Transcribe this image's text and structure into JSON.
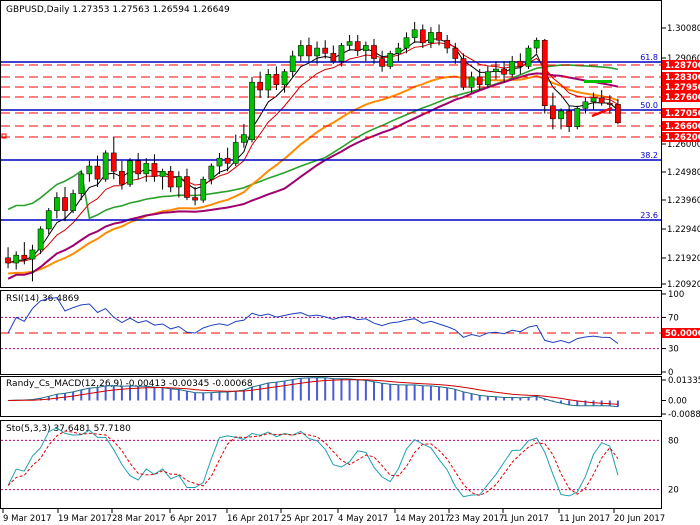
{
  "colors": {
    "background": "#ffffff",
    "frame": "#000000",
    "bull": "#00c000",
    "bear": "#ff0000",
    "hline_blue": "#0000c0",
    "hline_red": "#ff0000",
    "ma_green": "#2ca02c",
    "ma_orange": "#ff8c00",
    "ma_purple": "#a0006f",
    "ma_fast_black": "#000000",
    "ma_red": "#d00000",
    "rsi": "#1f3fbf",
    "macd_hist": "#4a5bd8",
    "macd_line": "#1f6f8b",
    "signal_line": "#d00000",
    "stoch_main": "#1f9fb0",
    "stoch_signal": "#e00000",
    "level_dotted": "#c0007a",
    "label_red_bg": "#ff0000",
    "label_red_text": "#ffffff"
  },
  "main": {
    "title": "GBPUSD,Daily  1.27353 1.27563 1.26594 1.26649",
    "y_ticks": [
      "1.30080",
      "1.29060",
      "1.28050",
      "1.27030",
      "1.26000",
      "1.24980",
      "1.23960",
      "1.22940",
      "1.21920",
      "1.20920"
    ],
    "fib_levels": [
      {
        "label": "61.8",
        "value": 1.2905
      },
      {
        "label": "50.0",
        "value": 1.2728
      },
      {
        "label": "38.2",
        "value": 1.2542
      },
      {
        "label": "23.6",
        "value": 1.2312
      }
    ],
    "red_price_labels": [
      "1.28700",
      "1.28300",
      "1.27950",
      "1.27600",
      "1.27050",
      "1.26600",
      "1.26200"
    ]
  },
  "rsi": {
    "title": "RSI(14) 36.4869",
    "y_ticks": [
      "100",
      "70",
      "50",
      "30",
      "0"
    ],
    "level_label": "50.0000"
  },
  "macd": {
    "title": "Randy_Cs_MACD(12,26,9) -0.00413 -0.00345 -0.00068",
    "y_ticks": [
      "0.01335",
      "0.00",
      "-0.0088"
    ]
  },
  "stoch": {
    "title": "Sto(5,3,3) 37.6481 57.7180",
    "y_ticks": [
      "80",
      "20"
    ]
  },
  "x_labels": [
    "9 Mar 2017",
    "19 Mar 2017",
    "28 Mar 2017",
    "6 Apr 2017",
    "16 Apr 2017",
    "25 Apr 2017",
    "4 May 2017",
    "14 May 2017",
    "23 May 2017",
    "1 Jun 2017",
    "11 Jun 2017",
    "20 Jun 2017"
  ],
  "chart_data": {
    "type": "candlestick",
    "symbol": "GBPUSD",
    "timeframe": "Daily",
    "last_bar": {
      "open": 1.27353,
      "high": 1.27563,
      "low": 1.26594,
      "close": 1.26649
    },
    "ylim": [
      1.205,
      1.308
    ],
    "candles": [
      {
        "o": 1.215,
        "h": 1.219,
        "l": 1.211,
        "c": 1.213
      },
      {
        "o": 1.213,
        "h": 1.2175,
        "l": 1.2105,
        "c": 1.216
      },
      {
        "o": 1.216,
        "h": 1.221,
        "l": 1.2125,
        "c": 1.2145
      },
      {
        "o": 1.2145,
        "h": 1.22,
        "l": 1.206,
        "c": 1.218
      },
      {
        "o": 1.218,
        "h": 1.227,
        "l": 1.2165,
        "c": 1.226
      },
      {
        "o": 1.226,
        "h": 1.234,
        "l": 1.224,
        "c": 1.233
      },
      {
        "o": 1.233,
        "h": 1.24,
        "l": 1.23,
        "c": 1.238
      },
      {
        "o": 1.238,
        "h": 1.242,
        "l": 1.229,
        "c": 1.233
      },
      {
        "o": 1.233,
        "h": 1.241,
        "l": 1.232,
        "c": 1.2395
      },
      {
        "o": 1.2395,
        "h": 1.248,
        "l": 1.237,
        "c": 1.247
      },
      {
        "o": 1.247,
        "h": 1.252,
        "l": 1.244,
        "c": 1.25
      },
      {
        "o": 1.25,
        "h": 1.254,
        "l": 1.242,
        "c": 1.245
      },
      {
        "o": 1.245,
        "h": 1.256,
        "l": 1.244,
        "c": 1.255
      },
      {
        "o": 1.255,
        "h": 1.261,
        "l": 1.245,
        "c": 1.248
      },
      {
        "o": 1.248,
        "h": 1.252,
        "l": 1.241,
        "c": 1.243
      },
      {
        "o": 1.243,
        "h": 1.253,
        "l": 1.242,
        "c": 1.252
      },
      {
        "o": 1.252,
        "h": 1.255,
        "l": 1.245,
        "c": 1.247
      },
      {
        "o": 1.247,
        "h": 1.253,
        "l": 1.244,
        "c": 1.251
      },
      {
        "o": 1.251,
        "h": 1.2545,
        "l": 1.244,
        "c": 1.246
      },
      {
        "o": 1.246,
        "h": 1.249,
        "l": 1.241,
        "c": 1.248
      },
      {
        "o": 1.248,
        "h": 1.25,
        "l": 1.24,
        "c": 1.242
      },
      {
        "o": 1.242,
        "h": 1.248,
        "l": 1.238,
        "c": 1.246
      },
      {
        "o": 1.246,
        "h": 1.249,
        "l": 1.237,
        "c": 1.238
      },
      {
        "o": 1.238,
        "h": 1.242,
        "l": 1.235,
        "c": 1.237
      },
      {
        "o": 1.237,
        "h": 1.246,
        "l": 1.236,
        "c": 1.245
      },
      {
        "o": 1.245,
        "h": 1.251,
        "l": 1.243,
        "c": 1.25
      },
      {
        "o": 1.25,
        "h": 1.255,
        "l": 1.247,
        "c": 1.253
      },
      {
        "o": 1.253,
        "h": 1.257,
        "l": 1.248,
        "c": 1.251
      },
      {
        "o": 1.251,
        "h": 1.262,
        "l": 1.25,
        "c": 1.259
      },
      {
        "o": 1.259,
        "h": 1.266,
        "l": 1.257,
        "c": 1.262
      },
      {
        "o": 1.26,
        "h": 1.284,
        "l": 1.259,
        "c": 1.282
      },
      {
        "o": 1.282,
        "h": 1.286,
        "l": 1.276,
        "c": 1.279
      },
      {
        "o": 1.279,
        "h": 1.287,
        "l": 1.276,
        "c": 1.285
      },
      {
        "o": 1.285,
        "h": 1.288,
        "l": 1.279,
        "c": 1.281
      },
      {
        "o": 1.281,
        "h": 1.287,
        "l": 1.278,
        "c": 1.286
      },
      {
        "o": 1.286,
        "h": 1.294,
        "l": 1.284,
        "c": 1.292
      },
      {
        "o": 1.292,
        "h": 1.298,
        "l": 1.29,
        "c": 1.296
      },
      {
        "o": 1.296,
        "h": 1.299,
        "l": 1.29,
        "c": 1.292
      },
      {
        "o": 1.292,
        "h": 1.2975,
        "l": 1.289,
        "c": 1.295
      },
      {
        "o": 1.295,
        "h": 1.298,
        "l": 1.291,
        "c": 1.293
      },
      {
        "o": 1.293,
        "h": 1.296,
        "l": 1.289,
        "c": 1.29
      },
      {
        "o": 1.29,
        "h": 1.297,
        "l": 1.288,
        "c": 1.296
      },
      {
        "o": 1.296,
        "h": 1.3,
        "l": 1.294,
        "c": 1.2975
      },
      {
        "o": 1.2975,
        "h": 1.3,
        "l": 1.292,
        "c": 1.294
      },
      {
        "o": 1.294,
        "h": 1.2975,
        "l": 1.29,
        "c": 1.296
      },
      {
        "o": 1.296,
        "h": 1.2985,
        "l": 1.289,
        "c": 1.291
      },
      {
        "o": 1.291,
        "h": 1.294,
        "l": 1.286,
        "c": 1.288
      },
      {
        "o": 1.288,
        "h": 1.294,
        "l": 1.287,
        "c": 1.293
      },
      {
        "o": 1.293,
        "h": 1.297,
        "l": 1.29,
        "c": 1.295
      },
      {
        "o": 1.295,
        "h": 1.301,
        "l": 1.293,
        "c": 1.299
      },
      {
        "o": 1.299,
        "h": 1.305,
        "l": 1.297,
        "c": 1.302
      },
      {
        "o": 1.302,
        "h": 1.304,
        "l": 1.295,
        "c": 1.297
      },
      {
        "o": 1.297,
        "h": 1.303,
        "l": 1.295,
        "c": 1.301
      },
      {
        "o": 1.301,
        "h": 1.304,
        "l": 1.296,
        "c": 1.298
      },
      {
        "o": 1.298,
        "h": 1.3,
        "l": 1.293,
        "c": 1.295
      },
      {
        "o": 1.295,
        "h": 1.297,
        "l": 1.289,
        "c": 1.291
      },
      {
        "o": 1.291,
        "h": 1.293,
        "l": 1.279,
        "c": 1.28
      },
      {
        "o": 1.28,
        "h": 1.286,
        "l": 1.278,
        "c": 1.284
      },
      {
        "o": 1.284,
        "h": 1.287,
        "l": 1.279,
        "c": 1.281
      },
      {
        "o": 1.281,
        "h": 1.288,
        "l": 1.28,
        "c": 1.286
      },
      {
        "o": 1.286,
        "h": 1.29,
        "l": 1.283,
        "c": 1.287
      },
      {
        "o": 1.287,
        "h": 1.29,
        "l": 1.282,
        "c": 1.285
      },
      {
        "o": 1.285,
        "h": 1.292,
        "l": 1.284,
        "c": 1.29
      },
      {
        "o": 1.29,
        "h": 1.293,
        "l": 1.285,
        "c": 1.288
      },
      {
        "o": 1.288,
        "h": 1.296,
        "l": 1.287,
        "c": 1.295
      },
      {
        "o": 1.295,
        "h": 1.299,
        "l": 1.293,
        "c": 1.298
      },
      {
        "o": 1.298,
        "h": 1.2985,
        "l": 1.27,
        "c": 1.273
      },
      {
        "o": 1.273,
        "h": 1.278,
        "l": 1.264,
        "c": 1.268
      },
      {
        "o": 1.268,
        "h": 1.272,
        "l": 1.264,
        "c": 1.271
      },
      {
        "o": 1.271,
        "h": 1.273,
        "l": 1.263,
        "c": 1.265
      },
      {
        "o": 1.265,
        "h": 1.273,
        "l": 1.264,
        "c": 1.272
      },
      {
        "o": 1.272,
        "h": 1.276,
        "l": 1.27,
        "c": 1.2745
      },
      {
        "o": 1.2745,
        "h": 1.278,
        "l": 1.2715,
        "c": 1.276
      },
      {
        "o": 1.276,
        "h": 1.279,
        "l": 1.273,
        "c": 1.274
      },
      {
        "o": 1.274,
        "h": 1.277,
        "l": 1.27,
        "c": 1.2735
      },
      {
        "o": 1.27353,
        "h": 1.27563,
        "l": 1.26594,
        "c": 1.26649
      }
    ],
    "indicator_notes": {
      "rsi_last": 36.4869,
      "macd": [
        -0.00413,
        -0.00345,
        -0.00068
      ],
      "stoch": [
        37.6481,
        57.718
      ]
    }
  }
}
